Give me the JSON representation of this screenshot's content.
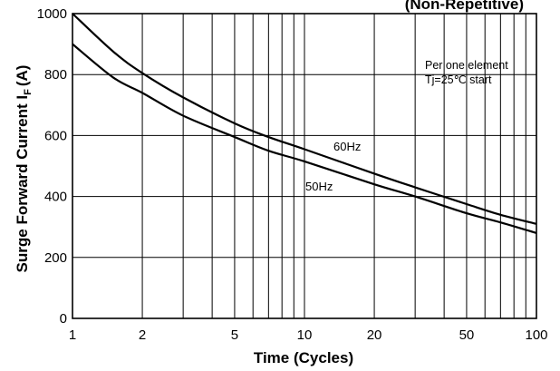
{
  "chart_data": {
    "type": "line",
    "title": "(Non-Repetitive)",
    "xlabel": "Time (Cycles)",
    "ylabel": "Surge Forward Current I F (A)",
    "ylabel_main": "Surge Forward Current I",
    "ylabel_sub": "F",
    "ylabel_unit": "(A)",
    "x_scale": "log",
    "xlim": [
      1,
      100
    ],
    "ylim": [
      0,
      1000
    ],
    "grid": true,
    "x_ticks": [
      1,
      2,
      5,
      10,
      20,
      50,
      100
    ],
    "x_tick_labels": [
      "1",
      "2",
      "5",
      "10",
      "20",
      "50",
      "100"
    ],
    "x_minor_gridlines": [
      3,
      4,
      6,
      7,
      8,
      9,
      30,
      40,
      60,
      70,
      80,
      90
    ],
    "y_ticks": [
      0,
      200,
      400,
      600,
      800,
      1000
    ],
    "y_tick_labels": [
      "0",
      "200",
      "400",
      "600",
      "800",
      "1000"
    ],
    "annotations": [
      "Per one element",
      "Tj=25℃ start"
    ],
    "series": [
      {
        "name": "60Hz",
        "x": [
          1,
          1.5,
          2,
          3,
          5,
          7,
          10,
          20,
          30,
          50,
          70,
          100
        ],
        "values": [
          1000,
          875,
          805,
          725,
          640,
          595,
          555,
          475,
          430,
          375,
          340,
          310
        ]
      },
      {
        "name": "50Hz",
        "x": [
          1,
          1.5,
          2,
          3,
          5,
          7,
          10,
          20,
          30,
          50,
          70,
          100
        ],
        "values": [
          900,
          790,
          740,
          665,
          595,
          550,
          515,
          440,
          400,
          345,
          315,
          280
        ]
      }
    ]
  }
}
